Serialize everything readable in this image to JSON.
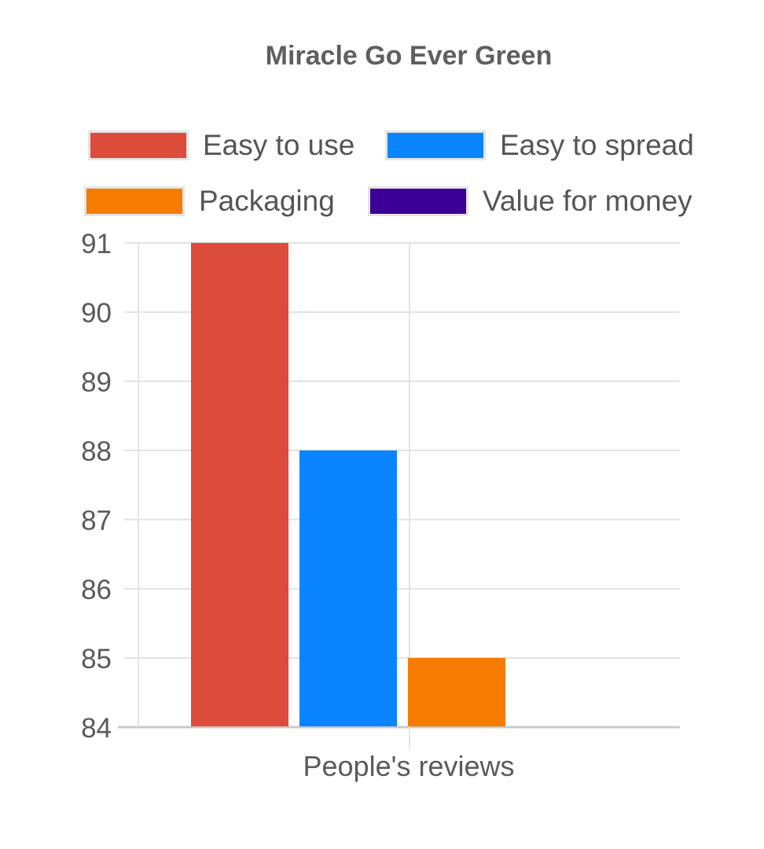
{
  "chart_data": {
    "type": "bar",
    "title": "Miracle Go Ever Green",
    "xlabel": "",
    "ylabel": "",
    "categories": [
      "People's reviews"
    ],
    "series": [
      {
        "name": "Easy to use",
        "color": "#dd4c3a",
        "values": [
          91
        ]
      },
      {
        "name": "Easy to spread",
        "color": "#0a85ff",
        "values": [
          88
        ]
      },
      {
        "name": "Packaging",
        "color": "#f57c00",
        "values": [
          85
        ]
      },
      {
        "name": "Value for money",
        "color": "#3b0095",
        "values": [
          null
        ]
      }
    ],
    "ylim": [
      84,
      91
    ],
    "yticks": [
      "84",
      "85",
      "86",
      "87",
      "88",
      "89",
      "90",
      "91"
    ],
    "grid": true,
    "legend_position": "top"
  }
}
